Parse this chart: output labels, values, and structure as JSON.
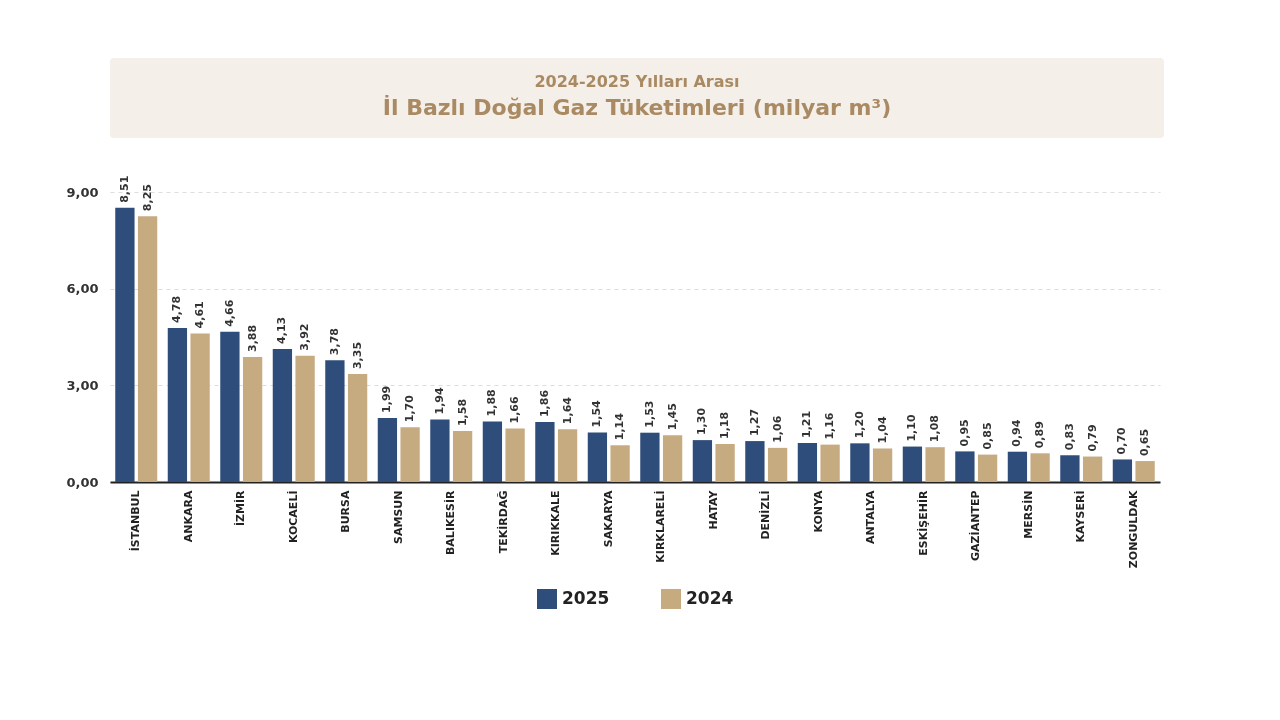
{
  "chart_data": {
    "type": "bar",
    "subtitle": "2024-2025 Yılları Arası",
    "title": "İl Bazlı Doğal Gaz Tüketimleri (milyar m³)",
    "categories": [
      "İSTANBUL",
      "ANKARA",
      "İZMİR",
      "KOCAELİ",
      "BURSA",
      "SAMSUN",
      "BALIKESİR",
      "TEKİRDAĞ",
      "KIRIKKALE",
      "SAKARYA",
      "KIRKLARELİ",
      "HATAY",
      "DENİZLİ",
      "KONYA",
      "ANTALYA",
      "ESKİŞEHİR",
      "GAZİANTEP",
      "MERSİN",
      "KAYSERİ",
      "ZONGULDAK"
    ],
    "series": [
      {
        "name": "2025",
        "color": "#2f4d7a",
        "values": [
          8.51,
          4.78,
          4.66,
          4.13,
          3.78,
          1.99,
          1.94,
          1.88,
          1.86,
          1.54,
          1.53,
          1.3,
          1.27,
          1.21,
          1.2,
          1.1,
          0.95,
          0.94,
          0.83,
          0.7
        ],
        "value_labels": [
          "8,51",
          "4,78",
          "4,66",
          "4,13",
          "3,78",
          "1,99",
          "1,94",
          "1,88",
          "1,86",
          "1,54",
          "1,53",
          "1,30",
          "1,27",
          "1,21",
          "1,20",
          "1,10",
          "0,95",
          "0,94",
          "0,83",
          "0,70"
        ]
      },
      {
        "name": "2024",
        "color": "#c6aa80",
        "values": [
          8.25,
          4.61,
          3.88,
          3.92,
          3.35,
          1.7,
          1.58,
          1.66,
          1.64,
          1.14,
          1.45,
          1.18,
          1.06,
          1.16,
          1.04,
          1.08,
          0.85,
          0.89,
          0.79,
          0.65
        ],
        "value_labels": [
          "8,25",
          "4,61",
          "3,88",
          "3,92",
          "3,35",
          "1,70",
          "1,58",
          "1,66",
          "1,64",
          "1,14",
          "1,45",
          "1,18",
          "1,06",
          "1,16",
          "1,04",
          "1,08",
          "0,85",
          "0,89",
          "0,79",
          "0,65"
        ]
      }
    ],
    "ylim": [
      0,
      9
    ],
    "yticks": [
      {
        "value": 0,
        "label": "0,00"
      },
      {
        "value": 3,
        "label": "3,00"
      },
      {
        "value": 6,
        "label": "6,00"
      },
      {
        "value": 9,
        "label": "9,00"
      }
    ],
    "grid": "y",
    "legend": "bottom"
  }
}
